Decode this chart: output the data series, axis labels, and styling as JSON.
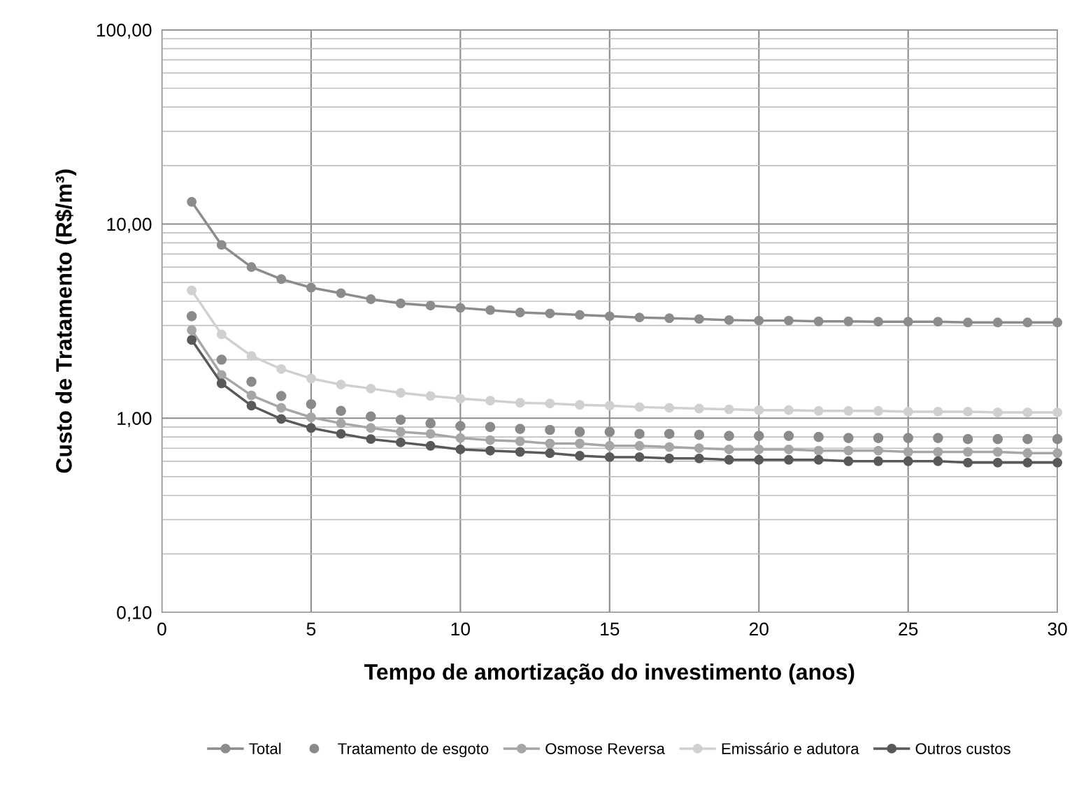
{
  "chart_data": {
    "type": "line",
    "xlabel": "Tempo de amortização do investimento (anos)",
    "ylabel": "Custo de Tratamento (R$/m³)",
    "x": [
      1,
      2,
      3,
      4,
      5,
      6,
      7,
      8,
      9,
      10,
      11,
      12,
      13,
      14,
      15,
      16,
      17,
      18,
      19,
      20,
      21,
      22,
      23,
      24,
      25,
      26,
      27,
      28,
      29,
      30
    ],
    "series": [
      {
        "name": "Total",
        "color": "#8c8c8c",
        "values": [
          13.0,
          7.8,
          6.0,
          5.2,
          4.7,
          4.4,
          4.1,
          3.9,
          3.8,
          3.7,
          3.6,
          3.5,
          3.46,
          3.4,
          3.35,
          3.3,
          3.27,
          3.24,
          3.2,
          3.18,
          3.18,
          3.15,
          3.15,
          3.14,
          3.14,
          3.14,
          3.11,
          3.11,
          3.11,
          3.11
        ]
      },
      {
        "name": "Tratamento de esgoto",
        "type": "scatter",
        "color": "#8a8a8a",
        "values": [
          3.35,
          2.0,
          1.54,
          1.3,
          1.18,
          1.09,
          1.02,
          0.98,
          0.94,
          0.91,
          0.9,
          0.88,
          0.87,
          0.85,
          0.85,
          0.83,
          0.83,
          0.82,
          0.81,
          0.81,
          0.81,
          0.8,
          0.79,
          0.79,
          0.79,
          0.79,
          0.78,
          0.78,
          0.78,
          0.78
        ]
      },
      {
        "name": "Osmose Reversa",
        "color": "#a6a6a6",
        "values": [
          2.84,
          1.67,
          1.31,
          1.13,
          1.01,
          0.94,
          0.89,
          0.85,
          0.83,
          0.79,
          0.77,
          0.76,
          0.74,
          0.74,
          0.72,
          0.72,
          0.71,
          0.7,
          0.69,
          0.69,
          0.69,
          0.68,
          0.68,
          0.68,
          0.67,
          0.67,
          0.67,
          0.67,
          0.66,
          0.66
        ]
      },
      {
        "name": "Emissário e adutora",
        "color": "#d0d0d0",
        "values": [
          4.55,
          2.7,
          2.09,
          1.79,
          1.6,
          1.49,
          1.42,
          1.35,
          1.3,
          1.26,
          1.23,
          1.2,
          1.19,
          1.17,
          1.16,
          1.14,
          1.13,
          1.12,
          1.11,
          1.1,
          1.1,
          1.09,
          1.09,
          1.09,
          1.08,
          1.08,
          1.08,
          1.07,
          1.07,
          1.07
        ]
      },
      {
        "name": "Outros custos",
        "color": "#595959",
        "values": [
          2.53,
          1.51,
          1.16,
          0.99,
          0.89,
          0.83,
          0.78,
          0.75,
          0.72,
          0.69,
          0.68,
          0.67,
          0.66,
          0.64,
          0.63,
          0.63,
          0.62,
          0.62,
          0.61,
          0.61,
          0.61,
          0.61,
          0.6,
          0.6,
          0.6,
          0.6,
          0.59,
          0.59,
          0.59,
          0.59
        ]
      }
    ],
    "xlim": [
      0,
      30
    ],
    "xticks": [
      0,
      5,
      10,
      15,
      20,
      25,
      30
    ],
    "ylim": [
      0.1,
      100
    ],
    "yticks": [
      {
        "value": 0.1,
        "label": "0,10"
      },
      {
        "value": 1,
        "label": "1,00"
      },
      {
        "value": 10,
        "label": "10,00"
      },
      {
        "value": 100,
        "label": "100,00"
      }
    ],
    "log": "y",
    "grid": true,
    "legend": "bottom",
    "marker": "circle",
    "line_style": "solid"
  }
}
